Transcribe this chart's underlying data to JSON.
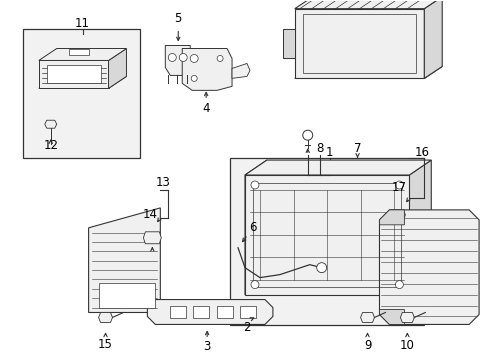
{
  "bg_color": "#ffffff",
  "line_color": "#333333",
  "fill_color": "#f0f0f0",
  "fill_dark": "#d8d8d8",
  "fig_width": 4.89,
  "fig_height": 3.6,
  "dpi": 100,
  "font_size": 8.5
}
